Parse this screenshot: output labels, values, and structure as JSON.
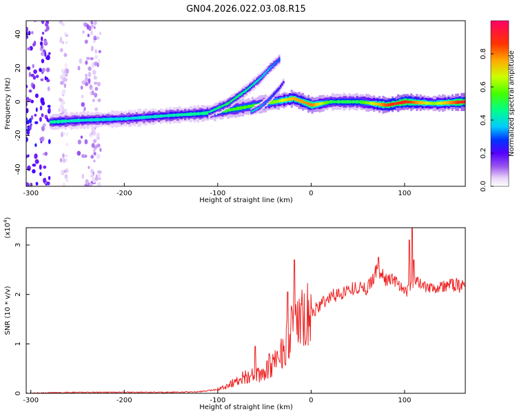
{
  "chart_data": [
    {
      "type": "heatmap",
      "title": "GN04.2026.022.03.08.R15",
      "xlabel": "Height of straight line (km)",
      "ylabel": "Frequency (Hz)",
      "xlim": [
        -305,
        165
      ],
      "ylim": [
        -50,
        48
      ],
      "x_ticks": [
        -300,
        -200,
        -100,
        0,
        100
      ],
      "y_ticks": [
        40,
        20,
        0,
        -20,
        -40
      ],
      "colorbar": {
        "label": "Normalized spectral amplitude",
        "range": [
          0,
          1
        ],
        "ticks": [
          0.0,
          0.2,
          0.4,
          0.6,
          0.8
        ],
        "tick_labels": [
          "0.0",
          "0.2",
          "0.4",
          "0.6",
          "0.8"
        ]
      },
      "main_ridge": {
        "x": [
          -280,
          -250,
          -200,
          -150,
          -120,
          -100,
          -80,
          -60,
          -40,
          -20,
          0,
          20,
          50,
          80,
          100,
          130,
          165
        ],
        "freq": [
          -12,
          -11,
          -10,
          -8,
          -7,
          -6,
          -4,
          -2,
          0,
          2,
          -2,
          0,
          0,
          -2,
          0,
          -1,
          0
        ],
        "amplitude": [
          0.45,
          0.4,
          0.38,
          0.42,
          0.45,
          0.5,
          0.55,
          0.55,
          0.6,
          0.75,
          0.8,
          0.5,
          0.5,
          0.85,
          0.9,
          0.6,
          0.95
        ]
      },
      "upper_branch": {
        "x": [
          -110,
          -90,
          -70,
          -55,
          -45,
          -35
        ],
        "freq": [
          -6,
          -1,
          7,
          14,
          20,
          25
        ],
        "amplitude": [
          0.45,
          0.5,
          0.45,
          0.4,
          0.35,
          0.3
        ]
      },
      "secondary_branch": {
        "x": [
          -65,
          -55,
          -45,
          -35,
          -30
        ],
        "freq": [
          -6,
          -3,
          2,
          8,
          12
        ],
        "amplitude": [
          0.4,
          0.35,
          0.3,
          0.25,
          0.2
        ]
      }
    },
    {
      "type": "line",
      "title": "",
      "xlabel": "Height of straight line (km)",
      "ylabel": "SNR (10 * v/v)",
      "y_multiplier": "(x10",
      "y_multiplier_exponent": "4",
      "y_multiplier_close": ")",
      "xlim": [
        -305,
        165
      ],
      "ylim": [
        0,
        3.35
      ],
      "x_ticks": [
        -300,
        -200,
        -100,
        0,
        100
      ],
      "y_ticks": [
        0,
        1,
        2,
        3
      ],
      "color": "#ee2222",
      "series": [
        {
          "name": "SNR",
          "x": [
            -305,
            -250,
            -200,
            -150,
            -120,
            -100,
            -90,
            -80,
            -70,
            -60,
            -50,
            -40,
            -30,
            -20,
            -10,
            0,
            10,
            20,
            30,
            40,
            50,
            60,
            70,
            80,
            90,
            100,
            110,
            120,
            130,
            140,
            150,
            165
          ],
          "y": [
            0.0,
            0.02,
            0.02,
            0.02,
            0.03,
            0.08,
            0.15,
            0.25,
            0.35,
            0.35,
            0.4,
            0.6,
            0.9,
            1.3,
            1.45,
            1.6,
            1.8,
            1.95,
            2.0,
            2.1,
            2.15,
            2.1,
            2.5,
            2.3,
            2.3,
            2.0,
            2.3,
            2.2,
            2.15,
            2.15,
            2.2,
            2.15
          ]
        }
      ],
      "spikes": {
        "x": [
          -18,
          -25,
          -60,
          -45,
          72,
          105,
          108,
          110
        ],
        "y": [
          2.7,
          2.05,
          0.95,
          0.8,
          2.75,
          3.1,
          3.35,
          2.7
        ]
      }
    }
  ]
}
